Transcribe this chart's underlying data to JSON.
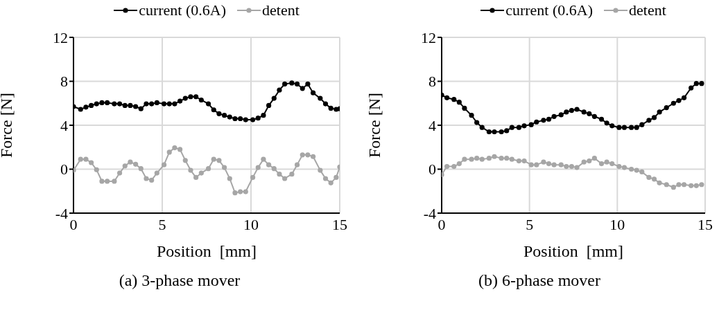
{
  "chart_data": [
    {
      "type": "line",
      "xlabel": "Position  [mm]",
      "ylabel": "Force [N]",
      "annotations": [
        "(a) 3-phase mover"
      ],
      "xlim": [
        0,
        15
      ],
      "xticks": [
        0,
        5,
        10,
        15
      ],
      "ylim": [
        -4,
        12
      ],
      "yticks": [
        -4,
        0,
        4,
        8,
        12
      ],
      "grid": true,
      "legend": "top",
      "marker": "circle",
      "line_style": "solid",
      "x": [
        0,
        0.4,
        0.7,
        1.0,
        1.3,
        1.6,
        1.9,
        2.3,
        2.6,
        2.9,
        3.2,
        3.5,
        3.8,
        4.1,
        4.4,
        4.7,
        5.1,
        5.4,
        5.7,
        6.0,
        6.3,
        6.6,
        6.9,
        7.2,
        7.6,
        7.9,
        8.2,
        8.5,
        8.8,
        9.1,
        9.4,
        9.7,
        10.1,
        10.4,
        10.7,
        11.0,
        11.3,
        11.6,
        11.9,
        12.3,
        12.6,
        12.9,
        13.2,
        13.5,
        13.9,
        14.2,
        14.5,
        14.8,
        15
      ],
      "series": [
        {
          "name": "current (0.6A)",
          "color": "#000000",
          "values": [
            5.7,
            5.45,
            5.65,
            5.8,
            5.95,
            6.05,
            6.05,
            5.95,
            5.95,
            5.8,
            5.8,
            5.7,
            5.5,
            5.95,
            5.95,
            6.05,
            5.95,
            5.95,
            5.95,
            6.2,
            6.45,
            6.6,
            6.6,
            6.3,
            5.95,
            5.4,
            5.05,
            4.9,
            4.75,
            4.6,
            4.6,
            4.5,
            4.5,
            4.65,
            4.9,
            5.8,
            6.45,
            7.2,
            7.75,
            7.85,
            7.75,
            7.35,
            7.75,
            6.95,
            6.45,
            5.95,
            5.55,
            5.45,
            5.5
          ]
        },
        {
          "name": "detent",
          "color": "#a6a6a6",
          "values": [
            -0.1,
            0.9,
            0.9,
            0.6,
            -0.05,
            -1.1,
            -1.1,
            -1.1,
            -0.35,
            0.3,
            0.65,
            0.45,
            0.05,
            -0.85,
            -1.0,
            -0.35,
            0.4,
            1.55,
            1.95,
            1.8,
            0.8,
            -0.1,
            -0.75,
            -0.35,
            0.05,
            0.9,
            0.8,
            0.15,
            -0.85,
            -2.15,
            -2.05,
            -2.05,
            -0.75,
            0.15,
            0.9,
            0.4,
            0.05,
            -0.45,
            -0.85,
            -0.45,
            0.4,
            1.3,
            1.3,
            1.15,
            -0.1,
            -0.85,
            -1.25,
            -0.75,
            0.2
          ]
        }
      ]
    },
    {
      "type": "line",
      "xlabel": "Position  [mm]",
      "ylabel": "Force [N]",
      "annotations": [
        "(b) 6-phase mover"
      ],
      "xlim": [
        0,
        15
      ],
      "xticks": [
        0,
        5,
        10,
        15
      ],
      "ylim": [
        -4,
        12
      ],
      "yticks": [
        -4,
        0,
        4,
        8,
        12
      ],
      "grid": true,
      "legend": "top",
      "marker": "circle",
      "line_style": "solid",
      "x": [
        0,
        0.3,
        0.7,
        1.0,
        1.3,
        1.7,
        2.0,
        2.3,
        2.7,
        3.0,
        3.4,
        3.7,
        4.0,
        4.4,
        4.7,
        5.1,
        5.4,
        5.8,
        6.1,
        6.4,
        6.8,
        7.1,
        7.4,
        7.7,
        8.1,
        8.4,
        8.7,
        9.1,
        9.4,
        9.7,
        10.1,
        10.4,
        10.8,
        11.1,
        11.4,
        11.8,
        12.1,
        12.4,
        12.8,
        13.2,
        13.5,
        13.8,
        14.2,
        14.5,
        14.8
      ],
      "series": [
        {
          "name": "current (0.6A)",
          "color": "#000000",
          "values": [
            6.75,
            6.5,
            6.35,
            6.1,
            5.55,
            4.9,
            4.25,
            3.8,
            3.4,
            3.4,
            3.4,
            3.5,
            3.8,
            3.8,
            3.95,
            4.05,
            4.3,
            4.45,
            4.55,
            4.8,
            4.95,
            5.2,
            5.35,
            5.45,
            5.2,
            5.05,
            4.8,
            4.55,
            4.2,
            3.95,
            3.8,
            3.8,
            3.8,
            3.8,
            4.05,
            4.45,
            4.7,
            5.2,
            5.6,
            6.0,
            6.25,
            6.5,
            7.4,
            7.8,
            7.8
          ]
        },
        {
          "name": "detent",
          "color": "#a6a6a6",
          "values": [
            -0.5,
            0.25,
            0.25,
            0.5,
            0.9,
            0.9,
            1.0,
            0.9,
            1.0,
            1.15,
            1.0,
            1.0,
            0.9,
            0.75,
            0.75,
            0.4,
            0.4,
            0.65,
            0.5,
            0.4,
            0.4,
            0.25,
            0.25,
            0.15,
            0.65,
            0.75,
            1.0,
            0.5,
            0.65,
            0.5,
            0.25,
            0.15,
            0.0,
            -0.1,
            -0.25,
            -0.75,
            -0.9,
            -1.25,
            -1.4,
            -1.65,
            -1.4,
            -1.4,
            -1.5,
            -1.5,
            -1.4
          ]
        }
      ]
    }
  ]
}
